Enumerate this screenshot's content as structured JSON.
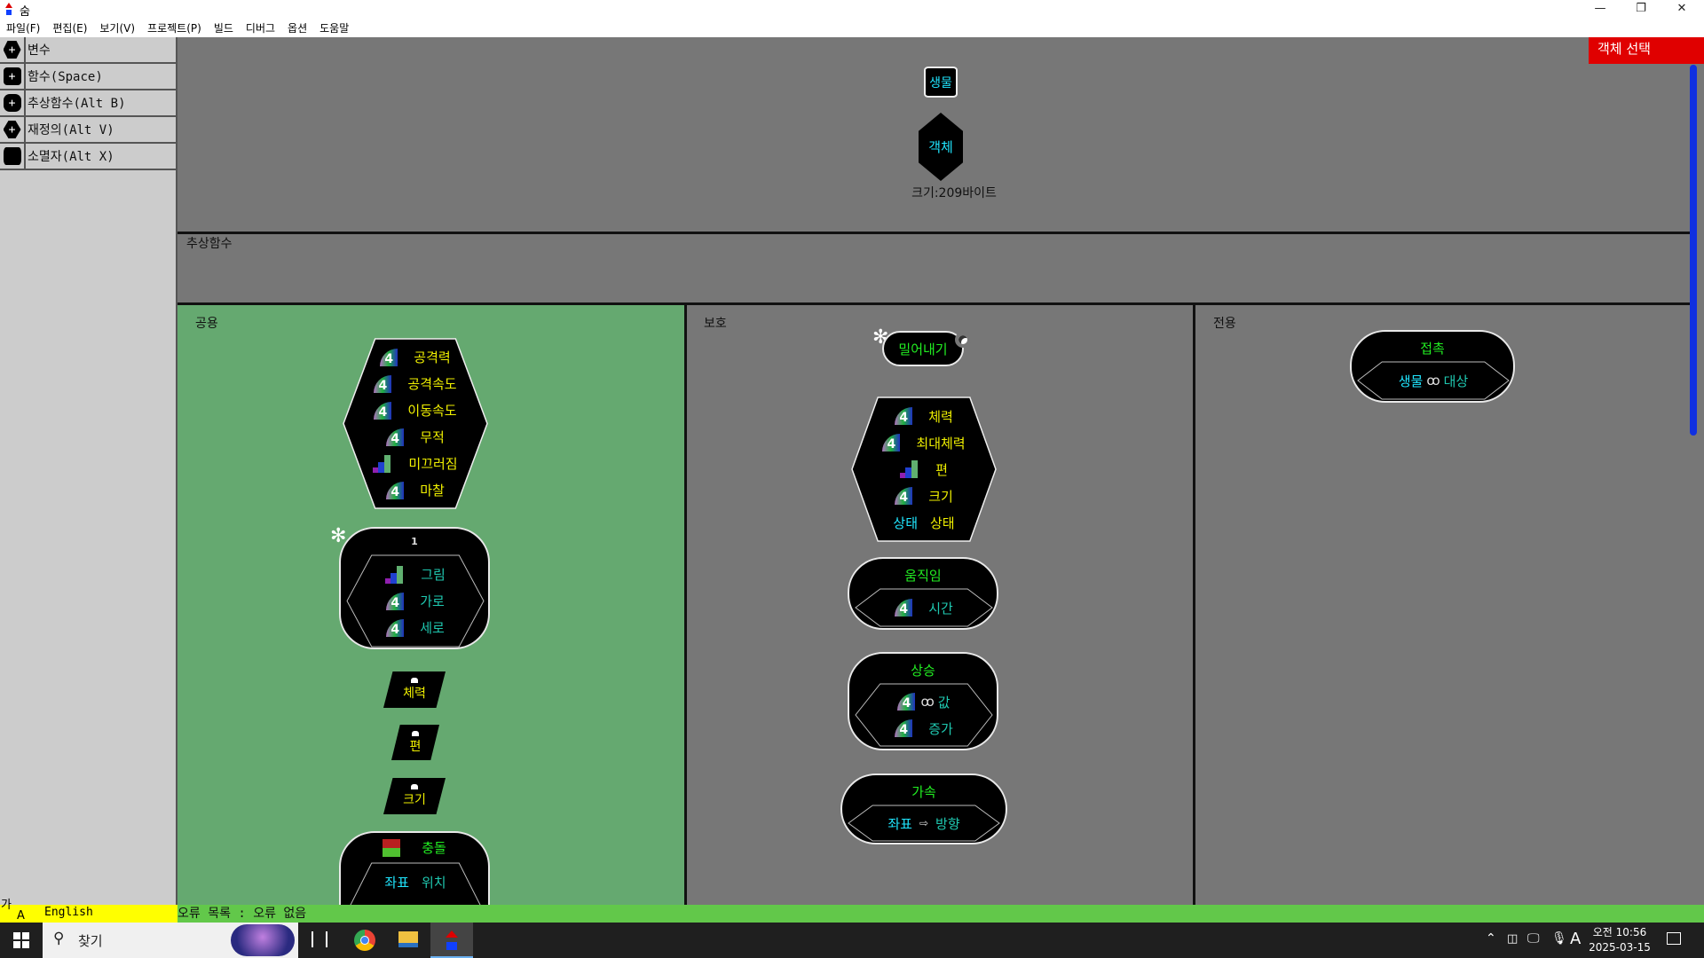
{
  "window": {
    "title": "숨",
    "minimize": "—",
    "restore": "❐",
    "close": "✕"
  },
  "menu": [
    "파일(F)",
    "편집(E)",
    "보기(V)",
    "프로젝트(P)",
    "빌드",
    "디버그",
    "옵션",
    "도움말"
  ],
  "sidebar": [
    {
      "label": "변수",
      "icon": "hexagon-plus-icon"
    },
    {
      "label": "함수(Space)",
      "icon": "rounded-square-plus-icon"
    },
    {
      "label": "추상함수(Alt B)",
      "icon": "octagon-plus-icon"
    },
    {
      "label": "재정의(Alt V)",
      "icon": "diamond-plus-icon"
    },
    {
      "label": "소멸자(Alt X)",
      "icon": "barrel-icon"
    }
  ],
  "top": {
    "parent": "생물",
    "object": "객체",
    "size": "크기:209바이트",
    "select_button": "객체 선택"
  },
  "abstract_label": "추상함수",
  "public": {
    "label": "공용",
    "fields": [
      {
        "icon": "q",
        "name": "공격력"
      },
      {
        "icon": "q",
        "name": "공격속도"
      },
      {
        "icon": "q",
        "name": "이동속도"
      },
      {
        "icon": "q",
        "name": "무적"
      },
      {
        "icon": "b",
        "name": "미끄러짐"
      },
      {
        "icon": "q",
        "name": "마찰"
      }
    ],
    "ctor": {
      "title": "1",
      "params": [
        {
          "icon": "b",
          "name": "그림"
        },
        {
          "icon": "q",
          "name": "가로"
        },
        {
          "icon": "q",
          "name": "세로"
        }
      ]
    },
    "props": [
      "체력",
      "편",
      "크기"
    ],
    "collision": {
      "title": "충돌",
      "params": [
        {
          "type": "좌표",
          "name": "위치"
        }
      ]
    }
  },
  "protected": {
    "label": "보호",
    "push": "밀어내기",
    "fields": [
      {
        "icon": "q",
        "name": "체력"
      },
      {
        "icon": "q",
        "name": "최대체력"
      },
      {
        "icon": "b",
        "name": "편"
      },
      {
        "icon": "q",
        "name": "크기"
      }
    ],
    "state_field": {
      "type": "상태",
      "name": "상태"
    },
    "move": {
      "title": "움직임",
      "param": "시간"
    },
    "rise": {
      "title": "상승",
      "param1": "값",
      "param2": "증가"
    },
    "accel": {
      "title": "가속",
      "type": "좌표",
      "arrow": "⇨",
      "name": "방향"
    }
  },
  "private": {
    "label": "전용",
    "contact": {
      "title": "접촉",
      "type": "생물",
      "name": "대상"
    }
  },
  "status": {
    "ime_top": "가",
    "ime_bottom": "A",
    "language": "English",
    "errors": "오류 목록 : 오류 없음"
  },
  "taskbar": {
    "search": "찾기",
    "time": "오전 10:56",
    "date": "2025-03-15",
    "ime": "A"
  },
  "colors": {
    "canvas": "#777777",
    "public_bg": "#65a970",
    "select_button": "#e00000",
    "scrollbar": "#1030e0",
    "status_bar": "#62c84a"
  }
}
